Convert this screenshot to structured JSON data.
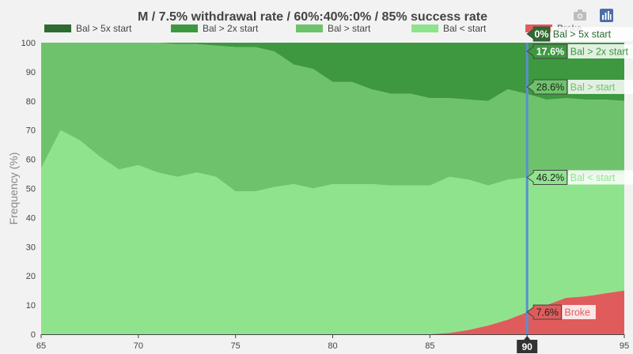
{
  "chart_data": {
    "type": "area",
    "title": "M / 7.5% withdrawal rate / 60%:40%:0% / 85% success rate",
    "xlabel": "",
    "ylabel": "Frequency (%)",
    "xlim": [
      65,
      95
    ],
    "ylim": [
      0,
      100
    ],
    "x_ticks": [
      "65",
      "70",
      "75",
      "80",
      "85",
      "90",
      "95"
    ],
    "y_ticks": [
      "0",
      "10",
      "20",
      "30",
      "40",
      "50",
      "60",
      "70",
      "80",
      "90",
      "100"
    ],
    "x": [
      65,
      66,
      67,
      68,
      69,
      70,
      71,
      72,
      73,
      74,
      75,
      76,
      77,
      78,
      79,
      80,
      81,
      82,
      83,
      84,
      85,
      86,
      87,
      88,
      89,
      90,
      91,
      92,
      93,
      94,
      95
    ],
    "series": [
      {
        "name": "Broke",
        "color": "#e05c5c",
        "values": [
          0,
          0,
          0,
          0,
          0,
          0,
          0,
          0,
          0,
          0,
          0,
          0,
          0,
          0,
          0,
          0,
          0,
          0,
          0,
          0,
          0,
          0.5,
          1.5,
          3,
          5,
          7.6,
          10,
          12.5,
          13,
          14,
          15
        ]
      },
      {
        "name": "Bal < start",
        "color": "#90e38d",
        "values": [
          57,
          70,
          66.5,
          61,
          56.5,
          58,
          55.5,
          54,
          55.5,
          54,
          49,
          49,
          50.5,
          51.5,
          50,
          51.5,
          51.5,
          51.5,
          51,
          51,
          51,
          53.5,
          51.5,
          48,
          48,
          46.2,
          43,
          42,
          41,
          41,
          40
        ]
      },
      {
        "name": "Bal > start",
        "color": "#6fc26c",
        "values": [
          43,
          30,
          33.5,
          39,
          43.5,
          42,
          44.5,
          45.5,
          44,
          45,
          49.5,
          49.5,
          46.5,
          41,
          41,
          35,
          35,
          32.5,
          31.5,
          31.5,
          30,
          27,
          27.5,
          29,
          31,
          28.6,
          27.5,
          26.5,
          26.5,
          25.5,
          25
        ]
      },
      {
        "name": "Bal > 2x start",
        "color": "#3e9840",
        "values": [
          0,
          0,
          0,
          0,
          0,
          0,
          0,
          0.5,
          0.5,
          1,
          1.5,
          1.5,
          3,
          7.5,
          9,
          13.5,
          13.5,
          16,
          17.5,
          17.5,
          19,
          19,
          19.5,
          20,
          16,
          17.6,
          19.5,
          19,
          19.5,
          19.5,
          20
        ]
      },
      {
        "name": "Bal > 5x start",
        "color": "#2e6b30",
        "values": [
          0,
          0,
          0,
          0,
          0,
          0,
          0,
          0,
          0,
          0,
          0,
          0,
          0,
          0,
          0,
          0,
          0,
          0,
          0,
          0,
          0,
          0,
          0,
          0,
          0,
          0,
          0,
          0,
          0,
          0,
          0
        ]
      }
    ],
    "legend_position": "top-left",
    "hover": {
      "x": "90",
      "items": [
        {
          "series": "Bal > 5x start",
          "value": "0%",
          "bg": "#2e6b30",
          "fg": "#ffffff",
          "text_color": "#2e6b30"
        },
        {
          "series": "Bal > 2x start",
          "value": "17.6%",
          "bg": "#3e9840",
          "fg": "#ffffff",
          "text_color": "#3e9840"
        },
        {
          "series": "Bal > start",
          "value": "28.6%",
          "bg": "#6fc26c",
          "fg": "#222222",
          "text_color": "#6fc26c"
        },
        {
          "series": "Bal < start",
          "value": "46.2%",
          "bg": "#90e38d",
          "fg": "#222222",
          "text_color": "#90e38d"
        },
        {
          "series": "Broke",
          "value": "7.6%",
          "bg": "#e05c5c",
          "fg": "#222222",
          "text_color": "#e05c5c"
        }
      ]
    }
  },
  "toolbar": {
    "camera_icon": "camera-icon",
    "chart_icon": "bar-chart-icon"
  }
}
